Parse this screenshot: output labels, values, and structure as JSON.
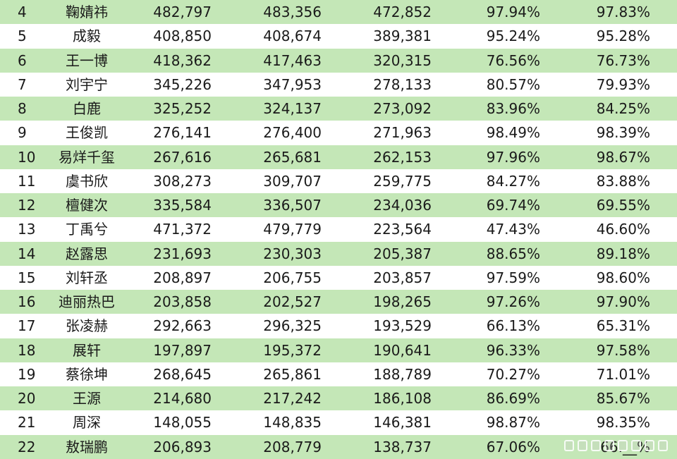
{
  "table": {
    "rows": [
      {
        "rank": "4",
        "name": "鞠婧祎",
        "v1": "482,797",
        "v2": "483,356",
        "v3": "472,852",
        "p1": "97.94%",
        "p2": "97.83%"
      },
      {
        "rank": "5",
        "name": "成毅",
        "v1": "408,850",
        "v2": "408,674",
        "v3": "389,381",
        "p1": "95.24%",
        "p2": "95.28%"
      },
      {
        "rank": "6",
        "name": "王一博",
        "v1": "418,362",
        "v2": "417,463",
        "v3": "320,315",
        "p1": "76.56%",
        "p2": "76.73%"
      },
      {
        "rank": "7",
        "name": "刘宇宁",
        "v1": "345,226",
        "v2": "347,953",
        "v3": "278,133",
        "p1": "80.57%",
        "p2": "79.93%"
      },
      {
        "rank": "8",
        "name": "白鹿",
        "v1": "325,252",
        "v2": "324,137",
        "v3": "273,092",
        "p1": "83.96%",
        "p2": "84.25%"
      },
      {
        "rank": "9",
        "name": "王俊凯",
        "v1": "276,141",
        "v2": "276,400",
        "v3": "271,963",
        "p1": "98.49%",
        "p2": "98.39%"
      },
      {
        "rank": "10",
        "name": "易烊千玺",
        "v1": "267,616",
        "v2": "265,681",
        "v3": "262,153",
        "p1": "97.96%",
        "p2": "98.67%"
      },
      {
        "rank": "11",
        "name": "虞书欣",
        "v1": "308,273",
        "v2": "309,707",
        "v3": "259,775",
        "p1": "84.27%",
        "p2": "83.88%"
      },
      {
        "rank": "12",
        "name": "檀健次",
        "v1": "335,584",
        "v2": "336,507",
        "v3": "234,036",
        "p1": "69.74%",
        "p2": "69.55%"
      },
      {
        "rank": "13",
        "name": "丁禹兮",
        "v1": "471,372",
        "v2": "479,779",
        "v3": "223,564",
        "p1": "47.43%",
        "p2": "46.60%"
      },
      {
        "rank": "14",
        "name": "赵露思",
        "v1": "231,693",
        "v2": "230,303",
        "v3": "205,387",
        "p1": "88.65%",
        "p2": "89.18%"
      },
      {
        "rank": "15",
        "name": "刘轩丞",
        "v1": "208,897",
        "v2": "206,755",
        "v3": "203,857",
        "p1": "97.59%",
        "p2": "98.60%"
      },
      {
        "rank": "16",
        "name": "迪丽热巴",
        "v1": "203,858",
        "v2": "202,527",
        "v3": "198,265",
        "p1": "97.26%",
        "p2": "97.90%"
      },
      {
        "rank": "17",
        "name": "张凌赫",
        "v1": "292,663",
        "v2": "296,325",
        "v3": "193,529",
        "p1": "66.13%",
        "p2": "65.31%"
      },
      {
        "rank": "18",
        "name": "展轩",
        "v1": "197,897",
        "v2": "195,372",
        "v3": "190,641",
        "p1": "96.33%",
        "p2": "97.58%"
      },
      {
        "rank": "19",
        "name": "蔡徐坤",
        "v1": "268,645",
        "v2": "265,861",
        "v3": "188,789",
        "p1": "70.27%",
        "p2": "71.01%"
      },
      {
        "rank": "20",
        "name": "王源",
        "v1": "214,680",
        "v2": "217,242",
        "v3": "186,108",
        "p1": "86.69%",
        "p2": "85.67%"
      },
      {
        "rank": "21",
        "name": "周深",
        "v1": "148,055",
        "v2": "148,835",
        "v3": "146,381",
        "p1": "98.87%",
        "p2": "98.35%"
      },
      {
        "rank": "22",
        "name": "敖瑞鹏",
        "v1": "206,893",
        "v2": "208,779",
        "v3": "138,737",
        "p1": "67.06%",
        "p2": "66.__%"
      }
    ]
  },
  "colors": {
    "row_odd": "#c4e7b7",
    "row_even": "#ffffff",
    "text": "#1a1a1a"
  },
  "watermark": {
    "icon": "image-watermark-icon"
  }
}
